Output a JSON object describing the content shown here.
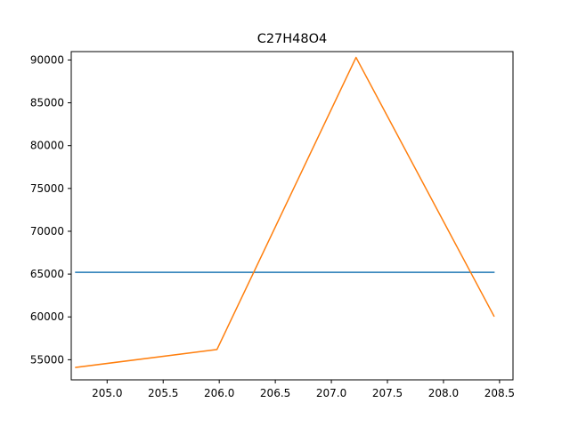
{
  "chart_data": {
    "type": "line",
    "title": "C27H48O4",
    "xlabel": "",
    "ylabel": "",
    "xlim": [
      204.68,
      208.62
    ],
    "ylim": [
      52650,
      90980
    ],
    "xticks": [
      205.0,
      205.5,
      206.0,
      206.5,
      207.0,
      207.5,
      208.0,
      208.5
    ],
    "xtick_labels": [
      "205.0",
      "205.5",
      "206.0",
      "206.5",
      "207.0",
      "207.5",
      "208.0",
      "208.5"
    ],
    "yticks": [
      55000,
      60000,
      65000,
      70000,
      75000,
      80000,
      85000,
      90000
    ],
    "ytick_labels": [
      "55000",
      "60000",
      "65000",
      "70000",
      "75000",
      "80000",
      "85000",
      "90000"
    ],
    "grid": false,
    "legend": null,
    "series": [
      {
        "name": "series-1",
        "color": "#1f77b4",
        "x": [
          204.72,
          208.45
        ],
        "y": [
          65200,
          65200
        ]
      },
      {
        "name": "series-2",
        "color": "#ff7f0e",
        "x": [
          204.72,
          205.98,
          207.22,
          208.45
        ],
        "y": [
          54100,
          56200,
          90300,
          60100
        ]
      }
    ]
  }
}
